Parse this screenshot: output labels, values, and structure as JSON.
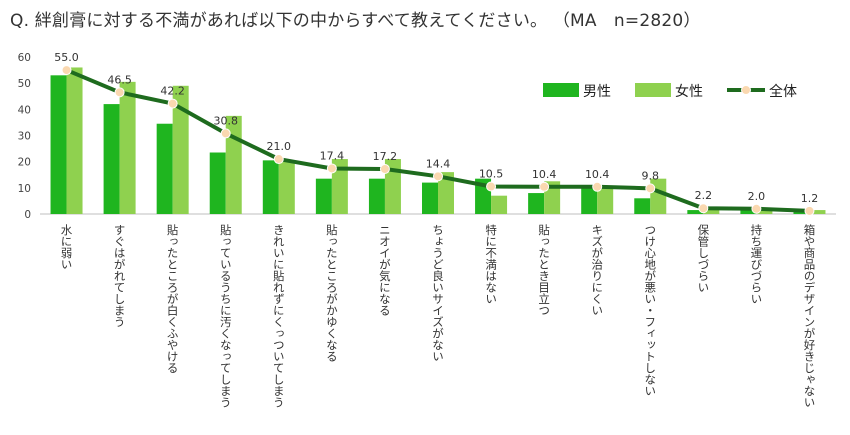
{
  "title": "Q.  絆創膏に対する不満があれば以下の中からすべて教えてください。 （MA　n=2820）",
  "chart_data": {
    "type": "bar",
    "categories": [
      "水に弱い",
      "すぐはがれてしまう",
      "貼ったところが白くふやける",
      "貼っているうちに汚くなってしまう",
      "きれいに貼れずにくっついてしまう",
      "貼ったところがかゆくなる",
      "ニオイが気になる",
      "ちょうど良いサイズがない",
      "特に不満はない",
      "貼ったとき目立つ",
      "キズが治りにくい",
      "つけ心地が悪い・フィットしない",
      "保管しづらい",
      "持ち運びづらい",
      "箱や商品のデザインが好きじゃない"
    ],
    "series": [
      {
        "name": "男性",
        "type": "bar",
        "color": "#1fb51f",
        "values": [
          53,
          42,
          34.5,
          23.5,
          20.5,
          13.5,
          13.5,
          12,
          13.5,
          8,
          10,
          6,
          1.5,
          1.5,
          1
        ]
      },
      {
        "name": "女性",
        "type": "bar",
        "color": "#8fd14f",
        "values": [
          56,
          50.5,
          49,
          37.5,
          20.5,
          21,
          21,
          16,
          7,
          12.5,
          10.5,
          13.5,
          2.5,
          2,
          1.5
        ]
      },
      {
        "name": "全体",
        "type": "line",
        "color": "#1e6b1e",
        "marker_color": "#fad8b0",
        "values": [
          55.0,
          46.5,
          42.2,
          30.8,
          21.0,
          17.4,
          17.2,
          14.4,
          10.5,
          10.4,
          10.4,
          9.8,
          2.2,
          2.0,
          1.2
        ],
        "labels": [
          "55.0",
          "46.5",
          "42.2",
          "30.8",
          "21.0",
          "17.4",
          "17.2",
          "14.4",
          "10.5",
          "10.4",
          "10.4",
          "9.8",
          "2.2",
          "2.0",
          "1.2"
        ]
      }
    ],
    "yticks": [
      "0",
      "10",
      "20",
      "30",
      "40",
      "50",
      "60"
    ],
    "ylim": [
      0,
      60
    ],
    "grid": false,
    "legend": "top-right"
  }
}
